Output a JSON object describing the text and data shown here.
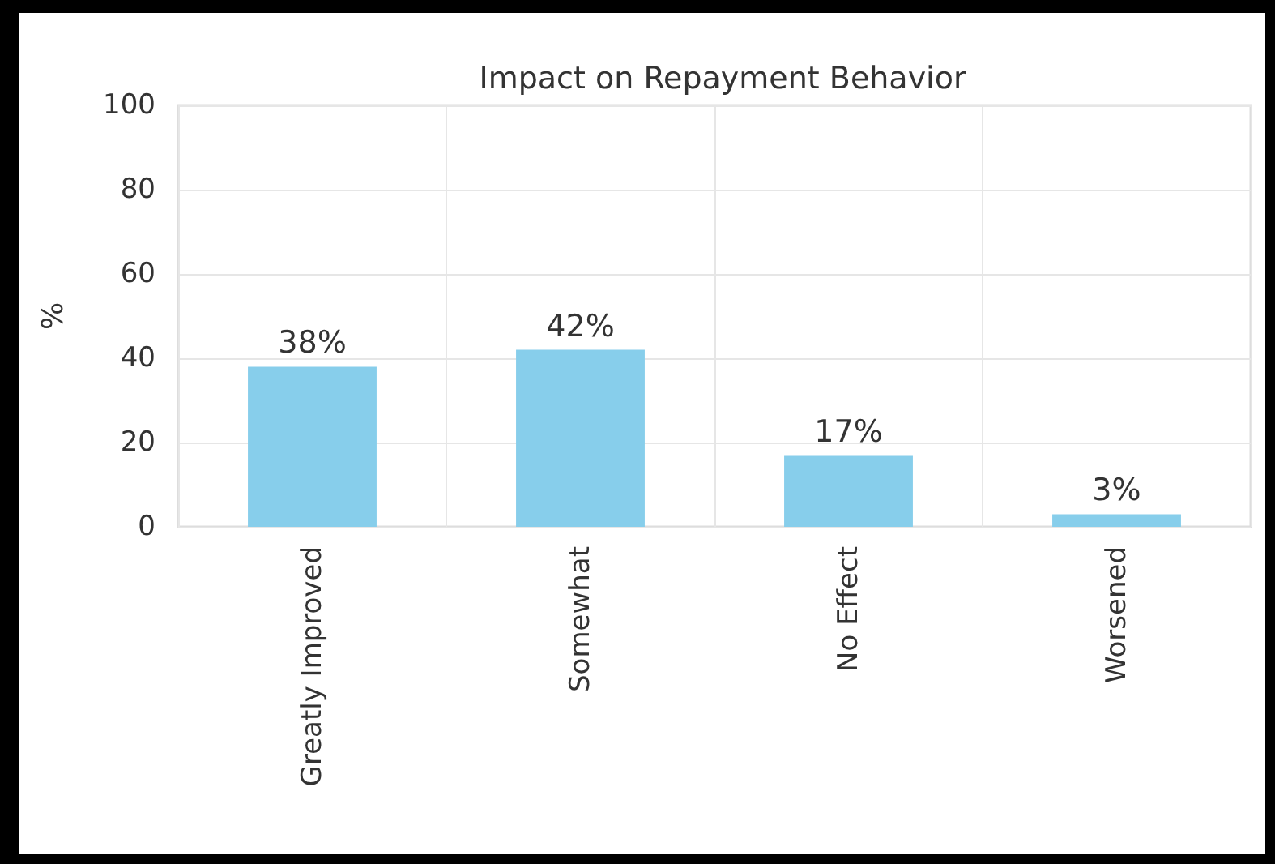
{
  "chart_data": {
    "type": "bar",
    "title": "Impact on Repayment Behavior",
    "ylabel": "%",
    "categories": [
      "Greatly Improved",
      "Somewhat",
      "No Effect",
      "Worsened"
    ],
    "values": [
      38,
      42,
      17,
      3
    ],
    "value_labels": [
      "38%",
      "42%",
      "17%",
      "3%"
    ],
    "color": "#87ceeb",
    "ylim": [
      0,
      100
    ],
    "yticks": [
      0,
      20,
      40,
      60,
      80,
      100
    ],
    "grid": true
  }
}
